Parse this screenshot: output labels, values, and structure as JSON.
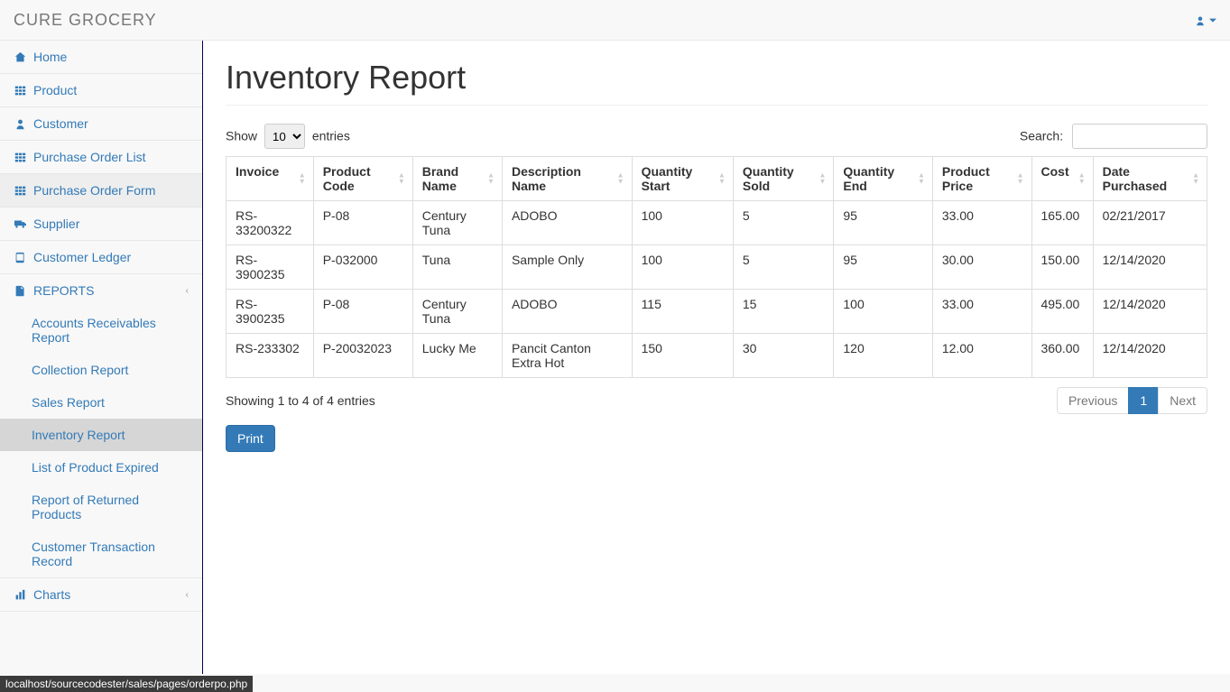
{
  "brand": "CURE GROCERY",
  "page_title": "Inventory Report",
  "user_menu": {
    "icon": "user",
    "caret": true
  },
  "sidebar": [
    {
      "icon": "home",
      "label": "Home",
      "link": true
    },
    {
      "icon": "th",
      "label": "Product",
      "link": true
    },
    {
      "icon": "user-solid",
      "label": "Customer",
      "link": true
    },
    {
      "icon": "th",
      "label": "Purchase Order List",
      "link": true
    },
    {
      "icon": "th",
      "label": "Purchase Order Form",
      "link": true,
      "hover": true
    },
    {
      "icon": "truck",
      "label": "Supplier",
      "link": true
    },
    {
      "icon": "book",
      "label": "Customer Ledger",
      "link": true
    },
    {
      "icon": "file",
      "label": "REPORTS",
      "link": true,
      "expandable": true,
      "expanded": true,
      "children": [
        {
          "label": "Accounts Receivables Report"
        },
        {
          "label": "Collection Report"
        },
        {
          "label": "Sales Report"
        },
        {
          "label": "Inventory Report",
          "active": true
        },
        {
          "label": "List of Product Expired"
        },
        {
          "label": "Report of Returned Products"
        },
        {
          "label": "Customer Transaction Record"
        }
      ]
    },
    {
      "icon": "chart",
      "label": "Charts",
      "link": true,
      "expandable": true
    }
  ],
  "datatable": {
    "length_prefix": "Show",
    "length_value": "10",
    "length_suffix": "entries",
    "search_label": "Search:",
    "columns": [
      "Invoice",
      "Product Code",
      "Brand Name",
      "Description Name",
      "Quantity Start",
      "Quantity Sold",
      "Quantity End",
      "Product Price",
      "Cost",
      "Date Purchased"
    ],
    "rows": [
      [
        "RS-33200322",
        "P-08",
        "Century Tuna",
        "ADOBO",
        "100",
        "5",
        "95",
        "33.00",
        "165.00",
        "02/21/2017"
      ],
      [
        "RS-3900235",
        "P-032000",
        "Tuna",
        "Sample Only",
        "100",
        "5",
        "95",
        "30.00",
        "150.00",
        "12/14/2020"
      ],
      [
        "RS-3900235",
        "P-08",
        "Century Tuna",
        "ADOBO",
        "115",
        "15",
        "100",
        "33.00",
        "495.00",
        "12/14/2020"
      ],
      [
        "RS-233302",
        "P-20032023",
        "Lucky Me",
        "Pancit Canton Extra Hot",
        "150",
        "30",
        "120",
        "12.00",
        "360.00",
        "12/14/2020"
      ]
    ],
    "info": "Showing 1 to 4 of 4 entries",
    "pagination": {
      "previous": "Previous",
      "next": "Next",
      "pages": [
        "1"
      ],
      "active": "1"
    }
  },
  "print_label": "Print",
  "status_bar": "localhost/sourcecodester/sales/pages/orderpo.php",
  "colors": {
    "link": "#337ab7",
    "border": "#ddd",
    "sidebar_border": "#00005c"
  }
}
